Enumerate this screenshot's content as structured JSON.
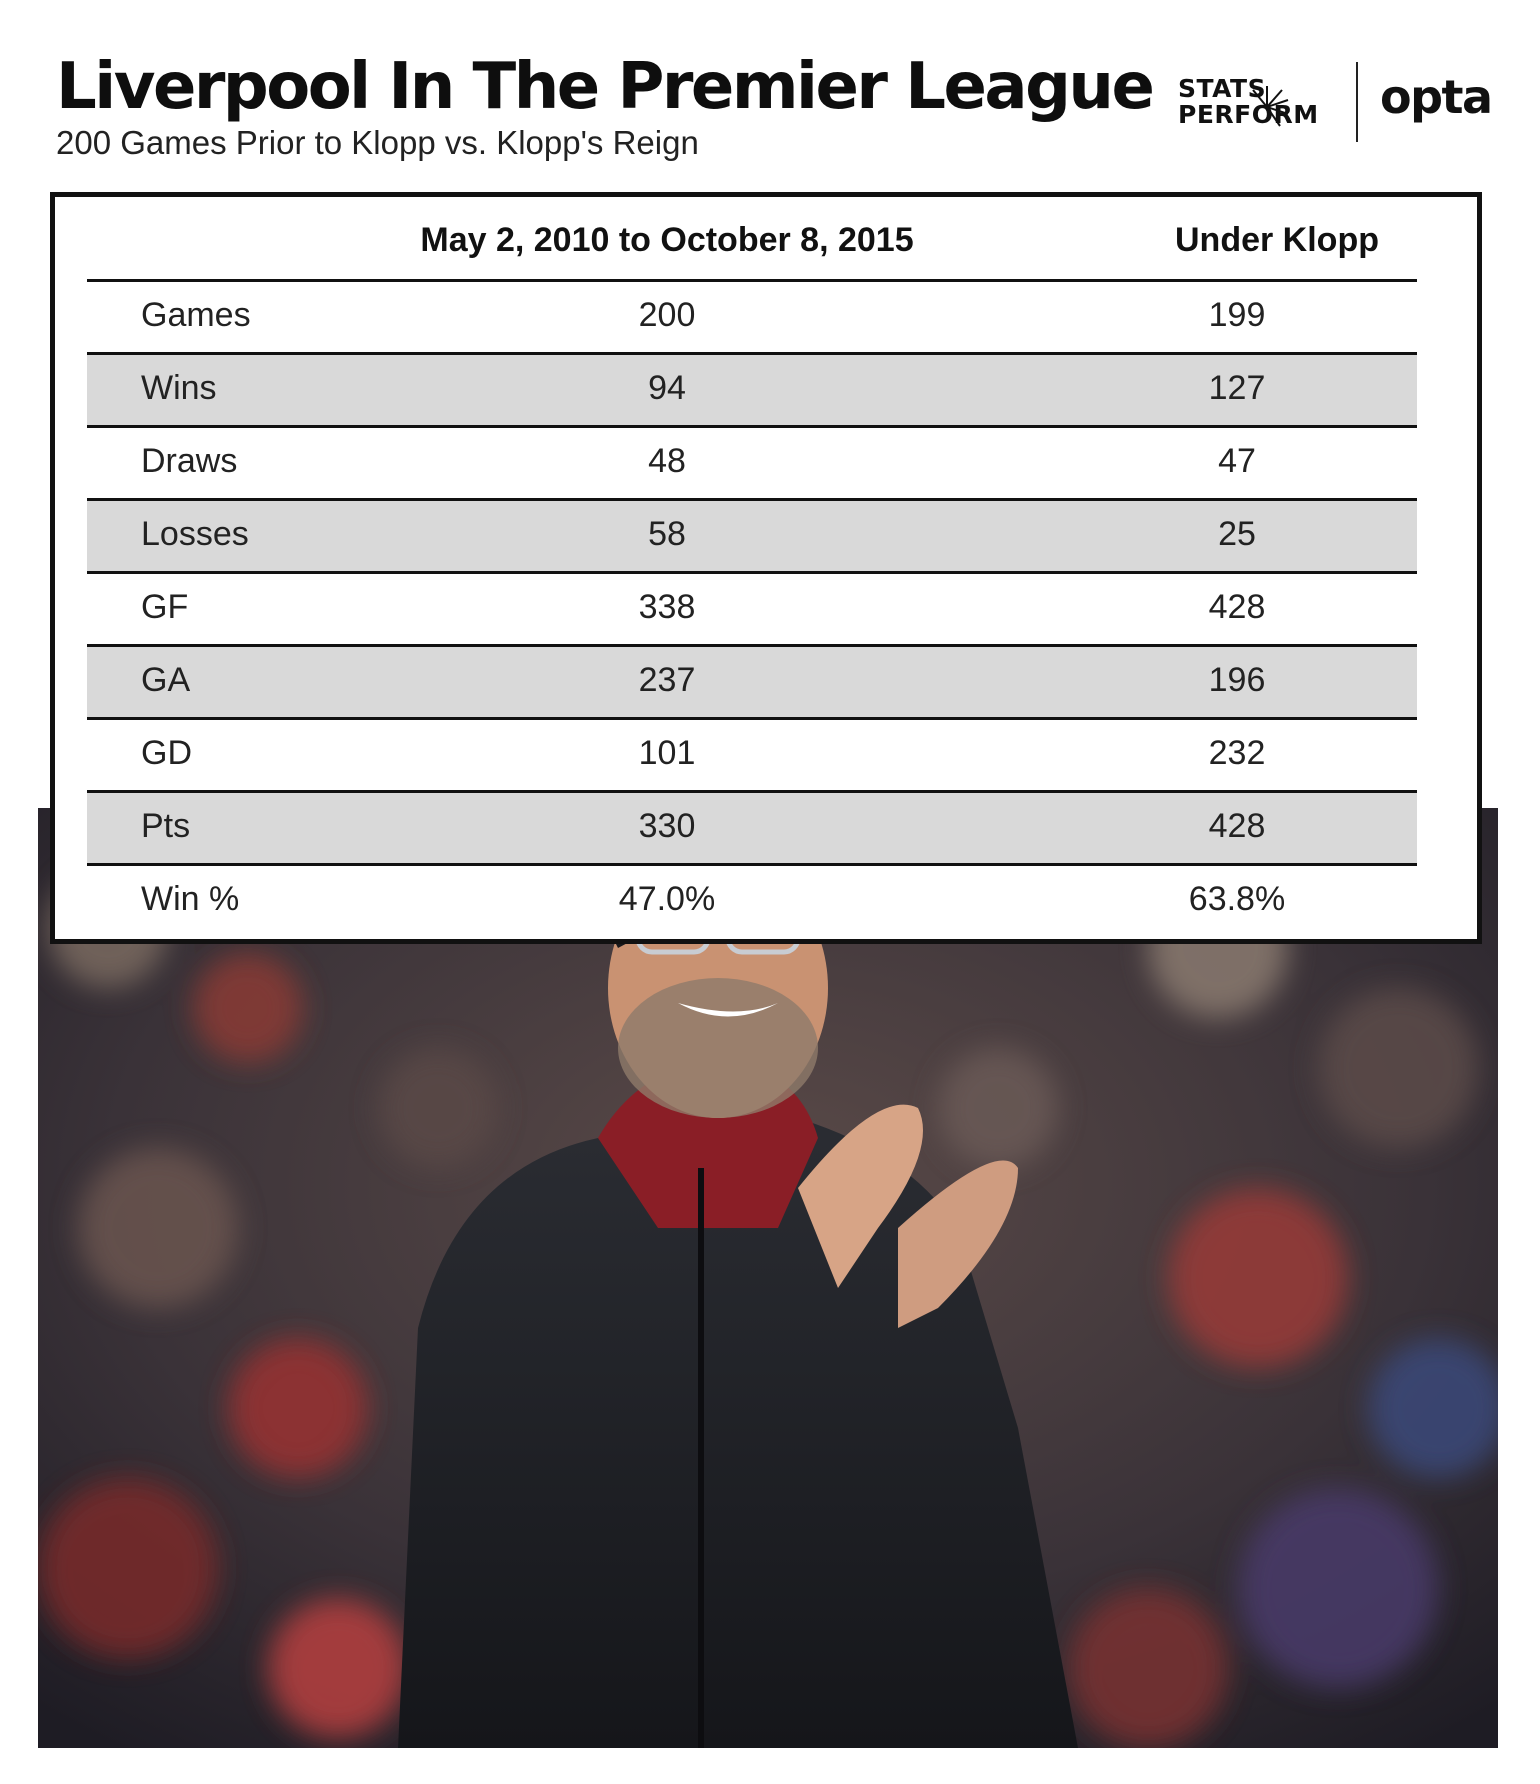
{
  "header": {
    "title": "Liverpool In The Premier League",
    "subtitle": "200 Games Prior to Klopp vs. Klopp's Reign"
  },
  "logos": {
    "stats_perform_line1": "STATS",
    "stats_perform_line2": "PERFORM",
    "opta": "opta"
  },
  "colors": {
    "row_shade": "#d9d9d9",
    "rule": "#111111"
  },
  "chart_data": {
    "type": "table",
    "title": "Liverpool In The Premier League",
    "subtitle": "200 Games Prior to Klopp vs. Klopp's Reign",
    "columns": [
      "",
      "May 2, 2010 to October 8, 2015",
      "Under Klopp"
    ],
    "rows": [
      {
        "label": "Games",
        "values": [
          "200",
          "199"
        ]
      },
      {
        "label": "Wins",
        "values": [
          "94",
          "127"
        ]
      },
      {
        "label": "Draws",
        "values": [
          "48",
          "47"
        ]
      },
      {
        "label": "Losses",
        "values": [
          "58",
          "25"
        ]
      },
      {
        "label": "GF",
        "values": [
          "338",
          "428"
        ]
      },
      {
        "label": "GA",
        "values": [
          "237",
          "196"
        ]
      },
      {
        "label": "GD",
        "values": [
          "101",
          "232"
        ]
      },
      {
        "label": "Pts",
        "values": [
          "330",
          "428"
        ]
      },
      {
        "label": "Win %",
        "values": [
          "47.0%",
          "63.8%"
        ]
      }
    ]
  }
}
